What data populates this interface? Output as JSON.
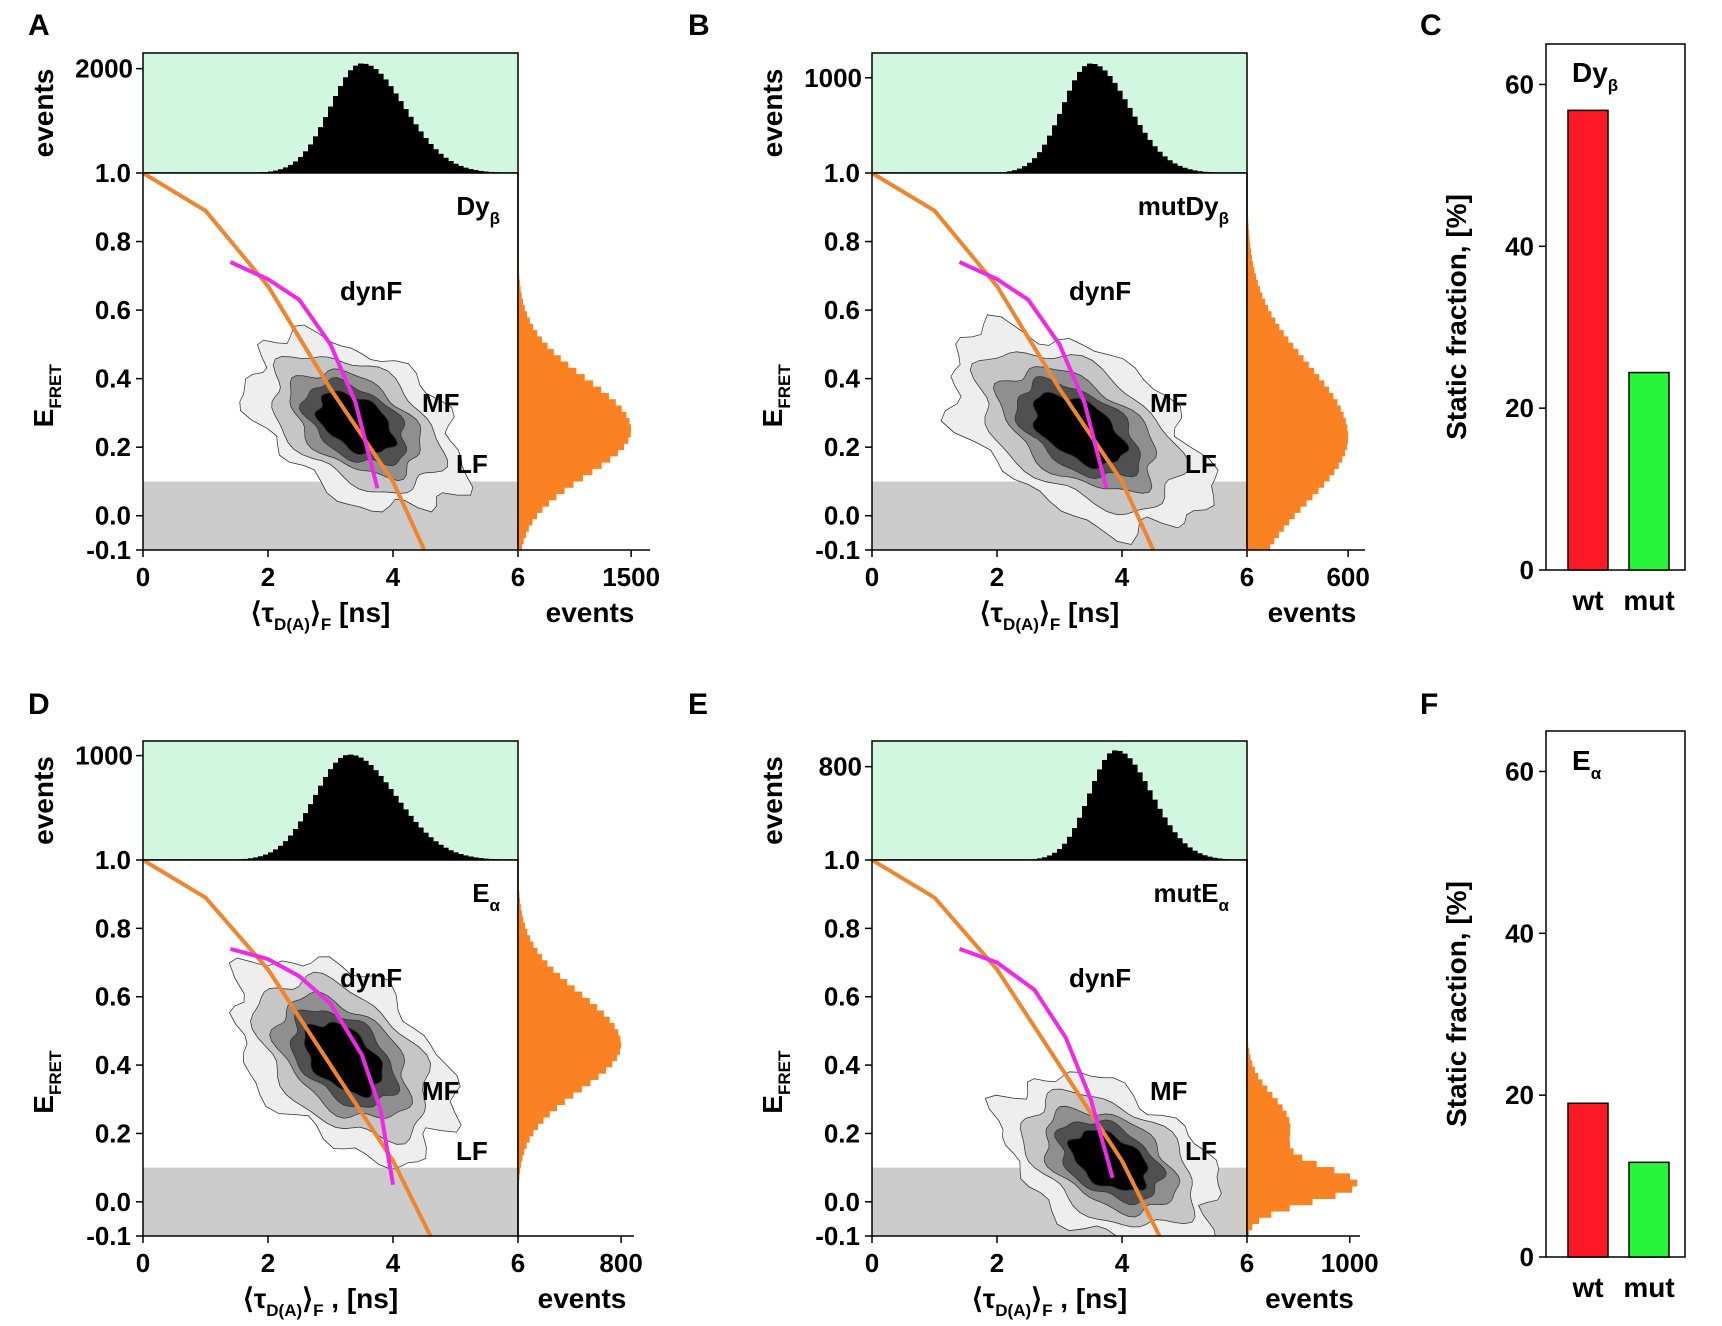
{
  "colors": {
    "top_hist_bg": "#d2f7e1",
    "hist_black": "#000000",
    "side_hist": "#fb8222",
    "static_line": "#f08530",
    "dynamic_line": "#ee2ae8",
    "threshold_shade": "#cccccc",
    "contour_levels": [
      "#eeeeee",
      "#c6c6c6",
      "#8f8f8f",
      "#505050",
      "#000000"
    ],
    "bar_wt": "#fd1826",
    "bar_mut": "#27f53b"
  },
  "chart_data": [
    {
      "panel": "A",
      "type": "heatmap",
      "sample": "Dy",
      "sample_sub": "β",
      "annotations": [
        "dynF",
        "MF",
        "LF"
      ],
      "xlabel_pre": "⟨τ",
      "xlabel_sub1": "D(A)",
      "xlabel_mid": "⟩",
      "xlabel_sub2": "F",
      "xlabel_post": " [ns]",
      "ylabel_main": "E",
      "ylabel_sub": "FRET",
      "xlim": [
        0,
        6
      ],
      "ylim": [
        -0.1,
        1.0
      ],
      "xticks": [
        "0",
        "2",
        "4",
        "6"
      ],
      "yticks": [
        "-0.1",
        "0.0",
        "0.2",
        "0.4",
        "0.6",
        "0.8",
        "1.0"
      ],
      "top_hist": {
        "ylabel": "events",
        "tick": "2000",
        "ymax": 2300,
        "peak": 2100,
        "center": 3.5,
        "width": 0.5
      },
      "side_hist": {
        "xlabel": "events",
        "tick": "1500",
        "xmax": 1750,
        "peak": 1500,
        "center": 0.25,
        "width": 0.12
      },
      "threshold_E": 0.1,
      "population_center": [
        3.4,
        0.27
      ],
      "population_spread": [
        0.45,
        0.14
      ],
      "population_tilt_deg": -58,
      "static_line": {
        "tau0": 4.5,
        "points": [
          [
            0,
            1.0
          ],
          [
            1,
            0.89
          ],
          [
            2,
            0.67
          ],
          [
            3,
            0.37
          ],
          [
            4,
            0.1
          ],
          [
            4.5,
            -0.1
          ]
        ]
      },
      "dynamic_line": {
        "points": [
          [
            1.4,
            0.74
          ],
          [
            2,
            0.69
          ],
          [
            2.5,
            0.63
          ],
          [
            3,
            0.5
          ],
          [
            3.4,
            0.33
          ],
          [
            3.75,
            0.08
          ]
        ]
      }
    },
    {
      "panel": "B",
      "type": "heatmap",
      "sample": "mutDy",
      "sample_sub": "β",
      "annotations": [
        "dynF",
        "MF",
        "LF"
      ],
      "xlabel_pre": "⟨τ",
      "xlabel_sub1": "D(A)",
      "xlabel_mid": "⟩",
      "xlabel_sub2": "F",
      "xlabel_post": " [ns]",
      "ylabel_main": "E",
      "ylabel_sub": "FRET",
      "xlim": [
        0,
        6
      ],
      "ylim": [
        -0.1,
        1.0
      ],
      "xticks": [
        "0",
        "2",
        "4",
        "6"
      ],
      "yticks": [
        "-0.1",
        "0.0",
        "0.2",
        "0.4",
        "0.6",
        "0.8",
        "1.0"
      ],
      "top_hist": {
        "ylabel": "events",
        "tick": "1000",
        "ymax": 1260,
        "peak": 1150,
        "center": 3.5,
        "width": 0.45
      },
      "side_hist": {
        "xlabel": "events",
        "tick": "600",
        "xmax": 700,
        "peak": 600,
        "center": 0.23,
        "width": 0.17
      },
      "threshold_E": 0.1,
      "population_center": [
        3.3,
        0.25
      ],
      "population_spread": [
        0.5,
        0.17
      ],
      "population_tilt_deg": -58,
      "static_line": {
        "tau0": 4.5,
        "points": [
          [
            0,
            1.0
          ],
          [
            1,
            0.89
          ],
          [
            2,
            0.67
          ],
          [
            3,
            0.37
          ],
          [
            4,
            0.1
          ],
          [
            4.5,
            -0.1
          ]
        ]
      },
      "dynamic_line": {
        "points": [
          [
            1.4,
            0.74
          ],
          [
            2,
            0.69
          ],
          [
            2.5,
            0.63
          ],
          [
            3,
            0.5
          ],
          [
            3.4,
            0.33
          ],
          [
            3.75,
            0.08
          ]
        ]
      }
    },
    {
      "panel": "C",
      "type": "bar",
      "sample": "Dy",
      "sample_sub": "β",
      "categories": [
        "wt",
        "mut"
      ],
      "values": [
        56.8,
        24.4
      ],
      "ylabel": "Static fraction, [%]",
      "ylim": [
        0,
        65
      ],
      "yticks": [
        "0",
        "20",
        "40",
        "60"
      ]
    },
    {
      "panel": "D",
      "type": "heatmap",
      "sample": "E",
      "sample_sub": "α",
      "annotations": [
        "dynF",
        "MF",
        "LF"
      ],
      "xlabel_pre": "⟨τ",
      "xlabel_sub1": "D(A)",
      "xlabel_mid": "⟩",
      "xlabel_sub2": "F",
      "xlabel_post": " , [ns]",
      "ylabel_main": "E",
      "ylabel_sub": "FRET",
      "xlim": [
        0,
        6
      ],
      "ylim": [
        -0.1,
        1.0
      ],
      "xticks": [
        "0",
        "2",
        "4",
        "6"
      ],
      "yticks": [
        "-0.1",
        "0.0",
        "0.2",
        "0.4",
        "0.6",
        "0.8",
        "1.0"
      ],
      "top_hist": {
        "ylabel": "events",
        "tick": "1000",
        "ymax": 1140,
        "peak": 1010,
        "center": 3.3,
        "width": 0.55
      },
      "side_hist": {
        "xlabel": "events",
        "tick": "800",
        "xmax": 900,
        "peak": 800,
        "center": 0.46,
        "width": 0.12
      },
      "threshold_E": 0.1,
      "population_center": [
        3.2,
        0.42
      ],
      "population_spread": [
        0.5,
        0.15
      ],
      "population_tilt_deg": -50,
      "static_line": {
        "tau0": 4.6,
        "points": [
          [
            0,
            1.0
          ],
          [
            1,
            0.89
          ],
          [
            2,
            0.68
          ],
          [
            3,
            0.4
          ],
          [
            4,
            0.12
          ],
          [
            4.6,
            -0.1
          ]
        ]
      },
      "dynamic_line": {
        "points": [
          [
            1.4,
            0.74
          ],
          [
            2,
            0.71
          ],
          [
            2.5,
            0.66
          ],
          [
            3,
            0.58
          ],
          [
            3.5,
            0.43
          ],
          [
            3.8,
            0.27
          ],
          [
            4.0,
            0.05
          ]
        ]
      }
    },
    {
      "panel": "E",
      "type": "heatmap",
      "sample": "mutE",
      "sample_sub": "α",
      "annotations": [
        "dynF",
        "MF",
        "LF"
      ],
      "xlabel_pre": "⟨τ",
      "xlabel_sub1": "D(A)",
      "xlabel_mid": "⟩",
      "xlabel_sub2": "F",
      "xlabel_post": " , [ns]",
      "ylabel_main": "E",
      "ylabel_sub": "FRET",
      "xlim": [
        0,
        6
      ],
      "ylim": [
        -0.1,
        1.0
      ],
      "xticks": [
        "0",
        "2",
        "4",
        "6"
      ],
      "yticks": [
        "-0.1",
        "0.0",
        "0.2",
        "0.4",
        "0.6",
        "0.8",
        "1.0"
      ],
      "top_hist": {
        "ylabel": "events",
        "tick": "800",
        "ymax": 1020,
        "peak": 940,
        "center": 3.9,
        "width": 0.42
      },
      "side_hist": {
        "xlabel": "events",
        "tick": "1000",
        "xmax": 1100,
        "peak": 1000,
        "center": 0.05,
        "width": 0.1
      },
      "threshold_E": 0.1,
      "population_center": [
        3.8,
        0.12
      ],
      "population_spread": [
        0.45,
        0.14
      ],
      "population_tilt_deg": -60,
      "static_line": {
        "tau0": 4.6,
        "points": [
          [
            0,
            1.0
          ],
          [
            1,
            0.89
          ],
          [
            2,
            0.68
          ],
          [
            3,
            0.4
          ],
          [
            4,
            0.12
          ],
          [
            4.6,
            -0.1
          ]
        ]
      },
      "dynamic_line": {
        "points": [
          [
            1.4,
            0.74
          ],
          [
            2,
            0.7
          ],
          [
            2.6,
            0.62
          ],
          [
            3.1,
            0.48
          ],
          [
            3.5,
            0.3
          ],
          [
            3.85,
            0.07
          ]
        ]
      }
    },
    {
      "panel": "F",
      "type": "bar",
      "sample": "E",
      "sample_sub": "α",
      "categories": [
        "wt",
        "mut"
      ],
      "values": [
        19.0,
        11.7
      ],
      "ylabel": "Static fraction, [%]",
      "ylim": [
        0,
        65
      ],
      "yticks": [
        "0",
        "20",
        "40",
        "60"
      ]
    }
  ]
}
